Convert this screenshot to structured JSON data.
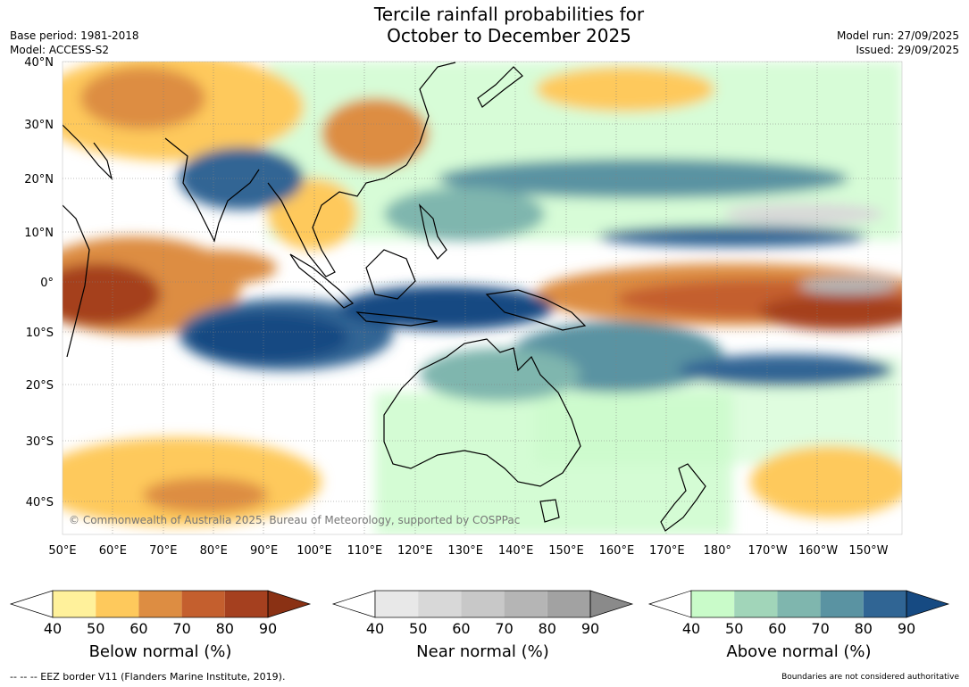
{
  "header": {
    "title_line1": "Tercile rainfall probabilities for",
    "title_line2": "October to December 2025",
    "base_period": "Base period: 1981-2018",
    "model": "Model: ACCESS-S2",
    "model_run": "Model run: 27/09/2025",
    "issued": "Issued: 29/09/2025"
  },
  "map": {
    "copyright": "© Commonwealth of Australia 2025, Bureau of Meteorology, supported by COSPPac",
    "lon_labels": [
      "50°E",
      "60°E",
      "70°E",
      "80°E",
      "90°E",
      "100°E",
      "110°E",
      "120°E",
      "130°E",
      "140°E",
      "150°E",
      "160°E",
      "170°E",
      "180°",
      "170°W",
      "160°W",
      "150°W"
    ],
    "lat_labels": [
      "40°N",
      "30°N",
      "20°N",
      "10°N",
      "0°",
      "10°S",
      "20°S",
      "30°S",
      "40°S"
    ]
  },
  "legends": [
    {
      "label": "Below normal (%)",
      "ticks": [
        "40",
        "50",
        "60",
        "70",
        "80",
        "90"
      ],
      "colors": [
        "#fff19b",
        "#fec95c",
        "#dd8d42",
        "#c45f2e",
        "#a5401f",
        "#8a3114"
      ]
    },
    {
      "label": "Near normal (%)",
      "ticks": [
        "40",
        "50",
        "60",
        "70",
        "80",
        "90"
      ],
      "colors": [
        "#e8e8e8",
        "#d8d8d8",
        "#c8c8c8",
        "#b5b5b5",
        "#a2a2a2",
        "#8a8a8a"
      ]
    },
    {
      "label": "Above normal (%)",
      "ticks": [
        "40",
        "50",
        "60",
        "70",
        "80",
        "90"
      ],
      "colors": [
        "#c9fbc9",
        "#a1d5b9",
        "#7fb6ae",
        "#5a93a2",
        "#306594",
        "#164a82"
      ]
    }
  ],
  "footer": {
    "eez_note": "--  --  -- EEZ border V11 (Flanders Marine Institute, 2019).",
    "disclaimer": "Boundaries are not considered authoritative"
  }
}
